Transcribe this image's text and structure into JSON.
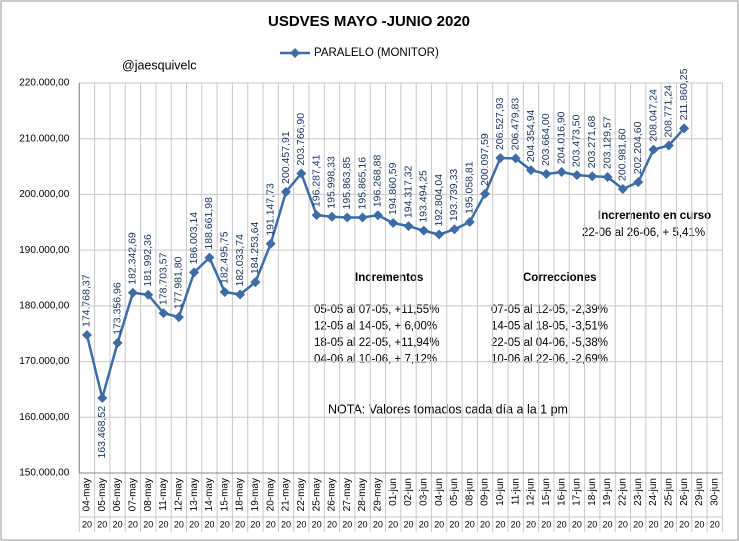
{
  "chart_data": {
    "type": "line",
    "title": "USDVES MAYO -JUNIO 2020",
    "categories": [
      "04-may",
      "05-may",
      "06-may",
      "07-may",
      "08-may",
      "11-may",
      "12-may",
      "13-may",
      "14-may",
      "15-may",
      "18-may",
      "19-may",
      "20-may",
      "21-may",
      "22-may",
      "25-may",
      "26-may",
      "27-may",
      "28-may",
      "29-may",
      "01-jun",
      "02-jun",
      "03-jun",
      "04-jun",
      "05-jun",
      "08-jun",
      "09-jun",
      "10-jun",
      "11-jun",
      "12-jun",
      "15-jun",
      "16-jun",
      "17-jun",
      "18-jun",
      "19-jun",
      "22-jun",
      "23-jun",
      "24-jun",
      "25-jun",
      "26-jun",
      "29-jun",
      "30-jun"
    ],
    "category_years": [
      "20",
      "20",
      "20",
      "20",
      "20",
      "20",
      "20",
      "20",
      "20",
      "20",
      "20",
      "20",
      "20",
      "20",
      "20",
      "20",
      "20",
      "20",
      "20",
      "20",
      "20",
      "20",
      "20",
      "20",
      "20",
      "20",
      "20",
      "20",
      "20",
      "20",
      "20",
      "20",
      "20",
      "20",
      "20",
      "20",
      "20",
      "20",
      "20",
      "20",
      "20",
      "20"
    ],
    "series": [
      {
        "name": "PARALELO (MONITOR)",
        "color": "#3e6da6",
        "values": [
          174768.37,
          163468.52,
          173356.96,
          182342.69,
          181992.36,
          178703.57,
          177981.8,
          186003.14,
          188661.98,
          182495.75,
          182033.74,
          184253.64,
          191147.73,
          200457.91,
          203766.9,
          196287.41,
          195998.33,
          195863.85,
          195865.16,
          196268.88,
          194860.59,
          194317.32,
          193494.25,
          192804.04,
          193739.33,
          195058.81,
          200097.59,
          206527.93,
          206479.83,
          204354.94,
          203664.0,
          204016.9,
          203473.5,
          203271.68,
          203129.57,
          200981.6,
          202204.6,
          208047.24,
          208771.24,
          211860.25,
          null,
          null
        ],
        "value_labels": [
          "174.768,37",
          "163.468,52",
          "173.356,96",
          "182.342,69",
          "181.992,36",
          "178.703,57",
          "177.981,80",
          "186.003,14",
          "188.661,98",
          "182.495,75",
          "182.033,74",
          "184.253,64",
          "191.147,73",
          "200.457,91",
          "203.766,90",
          "196.287,41",
          "195.998,33",
          "195.863,85",
          "195.865,16",
          "196.268,88",
          "194.860,59",
          "194.317,32",
          "193.494,25",
          "192.804,04",
          "193.739,33",
          "195.058,81",
          "200.097,59",
          "206.527,93",
          "206.479,83",
          "204.354,94",
          "203.664,00",
          "204.016,90",
          "203.473,50",
          "203.271,68",
          "203.129,57",
          "200.981,60",
          "202.204,60",
          "208.047,24",
          "208.771,24",
          "211.860,25",
          null,
          null
        ]
      }
    ],
    "ylim": [
      150000,
      220000
    ],
    "yticks": [
      {
        "value": 150000,
        "label": "150.000,00"
      },
      {
        "value": 160000,
        "label": "160.000,00"
      },
      {
        "value": 170000,
        "label": "170.000,00"
      },
      {
        "value": 180000,
        "label": "180.000,00"
      },
      {
        "value": 190000,
        "label": "190.000,00"
      },
      {
        "value": 200000,
        "label": "200.000,00"
      },
      {
        "value": 210000,
        "label": "210.000,00"
      },
      {
        "value": 220000,
        "label": "220.000,00"
      }
    ],
    "grid": true,
    "legend": "top",
    "annotations": {
      "author": "@jaesquivelc",
      "increments_title": "Incrementos",
      "increments": [
        "05-05  al 07-05,  +11,55%",
        "12-05  al 14-05,  +  6,00%",
        "18-05  al 22-05,  +11,94%",
        "04-06  al 10-06,  +  7,12%"
      ],
      "corrections_title": "Correcciones",
      "corrections": [
        "07-05  al 12-05,  -2,39%",
        "14-05  al 18-05,  -3,51%",
        "22-05  al 04-06,  -5,38%",
        "10-06  al 22-06,  -2,69%"
      ],
      "note": "NOTA: Valores tomados cada  día  a la  1 pm",
      "current_title": "Incremento en curso",
      "current": "22-06  al 26-06,   + 5,41%"
    }
  }
}
